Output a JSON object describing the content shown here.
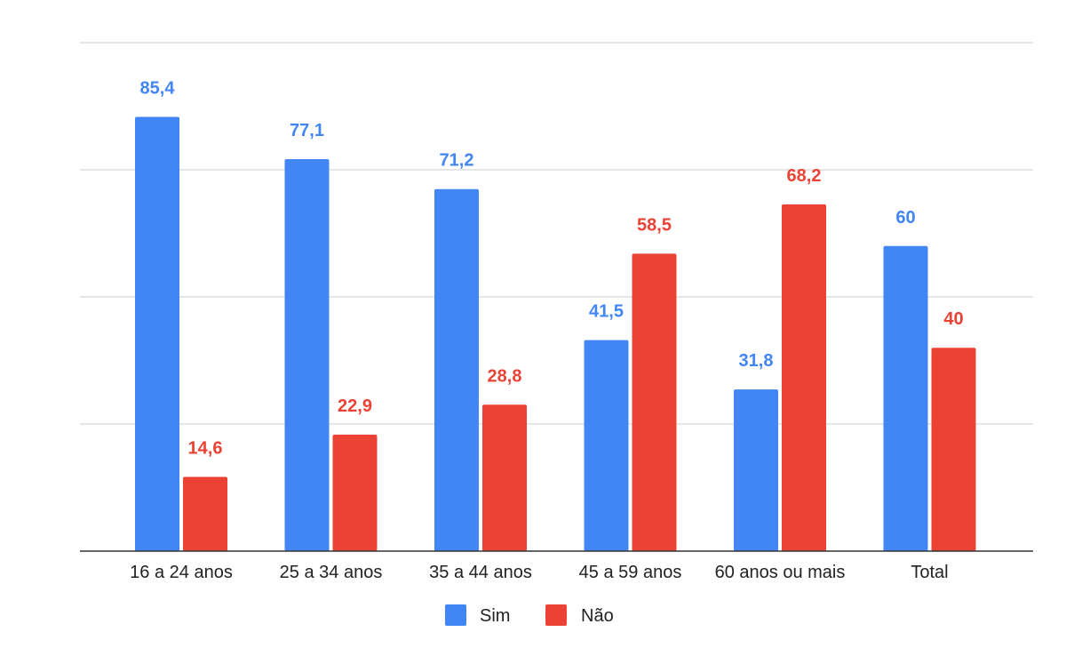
{
  "chart_data": {
    "type": "bar",
    "title": "",
    "xlabel": "",
    "ylabel": "",
    "ylim": [
      0,
      100
    ],
    "grid": true,
    "legend_position": "bottom",
    "categories": [
      "16 a 24 anos",
      "25 a 34 anos",
      "35 a 44 anos",
      "45 a 59 anos",
      "60 anos ou mais",
      "Total"
    ],
    "series": [
      {
        "name": "Sim",
        "color": "#4285F4",
        "values": [
          85.4,
          77.1,
          71.2,
          41.5,
          31.8,
          60
        ],
        "labels": [
          "85,4",
          "77,1",
          "71,2",
          "41,5",
          "31,8",
          "60"
        ]
      },
      {
        "name": "Não",
        "color": "#EA4335",
        "values": [
          14.6,
          22.9,
          28.8,
          58.5,
          68.2,
          40
        ],
        "labels": [
          "14,6",
          "22,9",
          "28,8",
          "58,5",
          "68,2",
          "40"
        ]
      }
    ]
  }
}
